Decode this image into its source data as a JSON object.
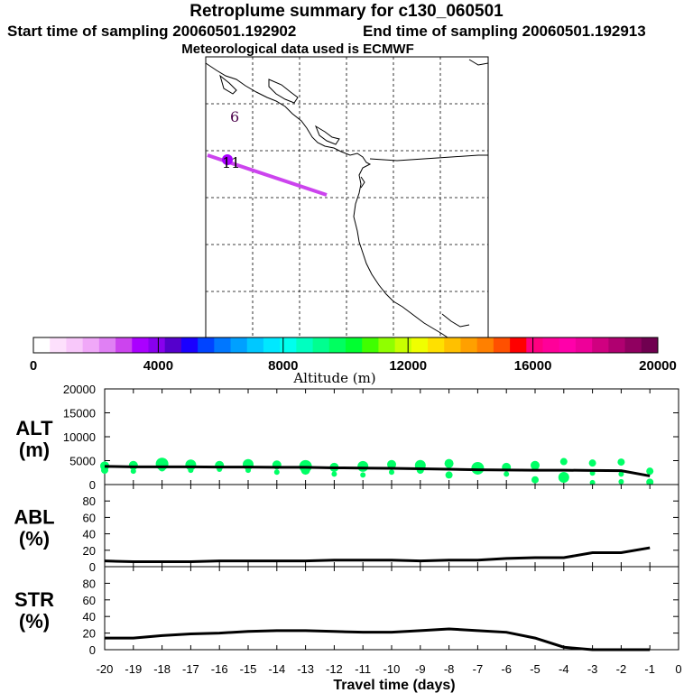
{
  "header": {
    "title": "Retroplume summary for c130_060501",
    "start": "Start time of sampling 20060501.192902",
    "end": "End time of sampling 20060501.192913",
    "met": "Meteorological data used is ECMWF"
  },
  "map": {
    "labels": [
      "6",
      "11"
    ],
    "track_color": "#cc44ee",
    "coast_color": "#000000"
  },
  "colorbar": {
    "ticks": [
      "0",
      "4000",
      "8000",
      "12000",
      "16000",
      "20000"
    ],
    "label": "Altitude (m)",
    "colors": [
      "#ffffff",
      "#fde0fc",
      "#f8c8fa",
      "#f0a8f8",
      "#e080f4",
      "#cc44ee",
      "#aa00ff",
      "#8800ee",
      "#5500cc",
      "#1a00ff",
      "#0044ff",
      "#0077ff",
      "#00a0ff",
      "#00c8ff",
      "#00e8ff",
      "#00ffee",
      "#00ffc0",
      "#00ff90",
      "#00ff60",
      "#00ff30",
      "#40ff00",
      "#90ff00",
      "#c8ff00",
      "#f0ff00",
      "#ffe000",
      "#ffc000",
      "#ffa000",
      "#ff8000",
      "#ff5000",
      "#ff0000",
      "#ff0080",
      "#ff0099",
      "#ff00aa",
      "#ee0099",
      "#d00080",
      "#b00070",
      "#900060",
      "#700050"
    ]
  },
  "chart_data": [
    {
      "type": "line",
      "panel": "ALT",
      "ylabel": "ALT (m)",
      "ylabel_l1": "ALT",
      "ylabel_l2": "(m)",
      "ylim": [
        0,
        20000
      ],
      "yticks": [
        "0",
        "5000",
        "10000",
        "15000",
        "20000"
      ],
      "x": [
        -20,
        -19,
        -18,
        -17,
        -16,
        -15,
        -14,
        -13,
        -12,
        -11,
        -10,
        -9,
        -8,
        -7,
        -6,
        -5,
        -4,
        -3,
        -2,
        -1
      ],
      "values": [
        3800,
        3700,
        3700,
        3700,
        3650,
        3650,
        3600,
        3600,
        3500,
        3450,
        3400,
        3300,
        3200,
        3100,
        3050,
        3000,
        3000,
        2950,
        2900,
        1800
      ],
      "scatter": [
        {
          "x": -20,
          "y": 3900,
          "s": 5
        },
        {
          "x": -20,
          "y": 3000,
          "s": 4
        },
        {
          "x": -19,
          "y": 4000,
          "s": 5
        },
        {
          "x": -19,
          "y": 2800,
          "s": 3
        },
        {
          "x": -18,
          "y": 4300,
          "s": 7
        },
        {
          "x": -18,
          "y": 3500,
          "s": 4
        },
        {
          "x": -17,
          "y": 4100,
          "s": 6
        },
        {
          "x": -17,
          "y": 3000,
          "s": 3
        },
        {
          "x": -16,
          "y": 4000,
          "s": 5
        },
        {
          "x": -16,
          "y": 3200,
          "s": 3
        },
        {
          "x": -15,
          "y": 4200,
          "s": 6
        },
        {
          "x": -15,
          "y": 3000,
          "s": 3
        },
        {
          "x": -14,
          "y": 4100,
          "s": 5
        },
        {
          "x": -14,
          "y": 2600,
          "s": 3
        },
        {
          "x": -13,
          "y": 3800,
          "s": 7
        },
        {
          "x": -13,
          "y": 3000,
          "s": 5
        },
        {
          "x": -12,
          "y": 3600,
          "s": 5
        },
        {
          "x": -12,
          "y": 2200,
          "s": 3
        },
        {
          "x": -11,
          "y": 3800,
          "s": 6
        },
        {
          "x": -11,
          "y": 2000,
          "s": 3
        },
        {
          "x": -10,
          "y": 4200,
          "s": 5
        },
        {
          "x": -10,
          "y": 2600,
          "s": 3
        },
        {
          "x": -9,
          "y": 4000,
          "s": 6
        },
        {
          "x": -9,
          "y": 3000,
          "s": 4
        },
        {
          "x": -8,
          "y": 4400,
          "s": 5
        },
        {
          "x": -8,
          "y": 2000,
          "s": 4
        },
        {
          "x": -7,
          "y": 3400,
          "s": 7
        },
        {
          "x": -7,
          "y": 3000,
          "s": 4
        },
        {
          "x": -6,
          "y": 3600,
          "s": 5
        },
        {
          "x": -6,
          "y": 2200,
          "s": 3
        },
        {
          "x": -5,
          "y": 4000,
          "s": 5
        },
        {
          "x": -5,
          "y": 1000,
          "s": 4
        },
        {
          "x": -4,
          "y": 4800,
          "s": 4
        },
        {
          "x": -4,
          "y": 1500,
          "s": 6
        },
        {
          "x": -3,
          "y": 4500,
          "s": 4
        },
        {
          "x": -3,
          "y": 2400,
          "s": 3
        },
        {
          "x": -3,
          "y": 400,
          "s": 3
        },
        {
          "x": -2,
          "y": 4700,
          "s": 4
        },
        {
          "x": -2,
          "y": 2200,
          "s": 3
        },
        {
          "x": -2,
          "y": 600,
          "s": 3
        },
        {
          "x": -1,
          "y": 2800,
          "s": 4
        },
        {
          "x": -1,
          "y": 500,
          "s": 4
        }
      ],
      "color": "#00ff66"
    },
    {
      "type": "line",
      "panel": "ABL",
      "ylabel": "ABL (%)",
      "ylabel_l1": "ABL",
      "ylabel_l2": "(%)",
      "ylim": [
        0,
        100
      ],
      "yticks": [
        "0",
        "20",
        "40",
        "60",
        "80"
      ],
      "x": [
        -20,
        -19,
        -18,
        -17,
        -16,
        -15,
        -14,
        -13,
        -12,
        -11,
        -10,
        -9,
        -8,
        -7,
        -6,
        -5,
        -4,
        -3,
        -2,
        -1
      ],
      "values": [
        7,
        6,
        6,
        6,
        7,
        7,
        7,
        7,
        8,
        8,
        8,
        7,
        8,
        8,
        10,
        11,
        11,
        17,
        17,
        23
      ]
    },
    {
      "type": "line",
      "panel": "STR",
      "ylabel": "STR (%)",
      "ylabel_l1": "STR",
      "ylabel_l2": "(%)",
      "ylim": [
        0,
        100
      ],
      "yticks": [
        "0",
        "20",
        "40",
        "60",
        "80"
      ],
      "x": [
        -20,
        -19,
        -18,
        -17,
        -16,
        -15,
        -14,
        -13,
        -12,
        -11,
        -10,
        -9,
        -8,
        -7,
        -6,
        -5,
        -4,
        -3,
        -2,
        -1
      ],
      "values": [
        14,
        14,
        17,
        19,
        20,
        22,
        23,
        23,
        22,
        21,
        21,
        23,
        25,
        23,
        21,
        14,
        3,
        0,
        0,
        0
      ],
      "xlabel": "Travel time (days)",
      "xticks": [
        "-20",
        "-19",
        "-18",
        "-17",
        "-16",
        "-15",
        "-14",
        "-13",
        "-12",
        "-11",
        "-10",
        "-9",
        "-8",
        "-7",
        "-6",
        "-5",
        "-4",
        "-3",
        "-2",
        "-1",
        "0"
      ]
    }
  ]
}
